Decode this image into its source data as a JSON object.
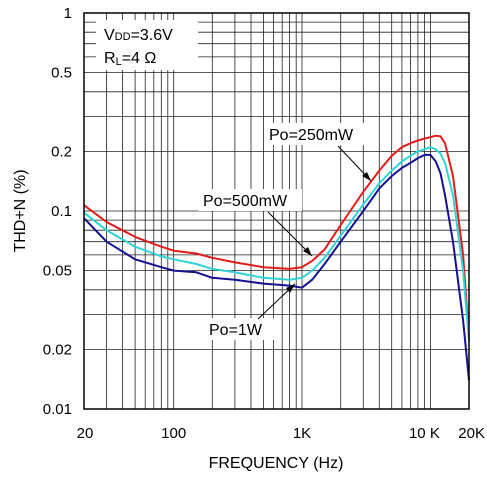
{
  "chart_data": {
    "type": "line",
    "xlabel": "FREQUENCY (Hz)",
    "ylabel": "THD+N (%)",
    "x_scale": "log",
    "y_scale": "log",
    "xlim": [
      20,
      20000
    ],
    "ylim": [
      0.01,
      1
    ],
    "grid": true,
    "x_tick_labels": [
      {
        "value": 20,
        "label": "20"
      },
      {
        "value": 100,
        "label": "100"
      },
      {
        "value": 1000,
        "label": "1K"
      },
      {
        "value": 10000,
        "label": "10 K"
      },
      {
        "value": 20000,
        "label": "20K"
      }
    ],
    "y_tick_labels": [
      {
        "value": 1,
        "label": "1"
      },
      {
        "value": 0.5,
        "label": "0.5"
      },
      {
        "value": 0.2,
        "label": "0.2"
      },
      {
        "value": 0.1,
        "label": "0.1"
      },
      {
        "value": 0.05,
        "label": "0.05"
      },
      {
        "value": 0.02,
        "label": "0.02"
      },
      {
        "value": 0.01,
        "label": "0.01"
      }
    ],
    "conditions": {
      "vdd_prefix": "V",
      "vdd_sub": "DD",
      "vdd_value": "=3.6V",
      "rl_prefix": "R",
      "rl_sub": "L",
      "rl_value": "=4 Ω"
    },
    "series": [
      {
        "name": "Po=250mW",
        "color": "#e31b1b",
        "x": [
          20,
          30,
          50,
          80,
          100,
          150,
          200,
          300,
          500,
          800,
          1000,
          1200,
          1500,
          2000,
          3000,
          4000,
          5000,
          6000,
          7000,
          8000,
          9000,
          10000,
          11000,
          12000,
          13000,
          15000,
          18000,
          20000
        ],
        "y": [
          0.107,
          0.088,
          0.074,
          0.066,
          0.063,
          0.061,
          0.058,
          0.055,
          0.052,
          0.051,
          0.052,
          0.056,
          0.064,
          0.085,
          0.125,
          0.16,
          0.19,
          0.21,
          0.22,
          0.227,
          0.232,
          0.236,
          0.24,
          0.238,
          0.22,
          0.15,
          0.06,
          0.023
        ]
      },
      {
        "name": "Po=500mW",
        "color": "#2fd3d8",
        "x": [
          20,
          30,
          50,
          80,
          100,
          150,
          200,
          300,
          500,
          800,
          1000,
          1200,
          1500,
          2000,
          3000,
          4000,
          5000,
          6000,
          7000,
          8000,
          9000,
          10000,
          11000,
          12000,
          13000,
          15000,
          18000,
          20000
        ],
        "y": [
          0.098,
          0.08,
          0.066,
          0.059,
          0.057,
          0.054,
          0.051,
          0.049,
          0.046,
          0.045,
          0.046,
          0.05,
          0.058,
          0.075,
          0.108,
          0.138,
          0.16,
          0.178,
          0.19,
          0.2,
          0.205,
          0.21,
          0.205,
          0.195,
          0.175,
          0.12,
          0.05,
          0.022
        ]
      },
      {
        "name": "Po=1W",
        "color": "#12128f",
        "x": [
          20,
          30,
          50,
          80,
          100,
          150,
          200,
          300,
          500,
          800,
          1000,
          1200,
          1500,
          2000,
          3000,
          4000,
          5000,
          6000,
          7000,
          8000,
          9000,
          10000,
          11000,
          12000,
          13000,
          15000,
          18000,
          20000
        ],
        "y": [
          0.092,
          0.07,
          0.057,
          0.052,
          0.05,
          0.049,
          0.046,
          0.045,
          0.043,
          0.042,
          0.041,
          0.045,
          0.054,
          0.07,
          0.1,
          0.13,
          0.15,
          0.165,
          0.175,
          0.185,
          0.192,
          0.192,
          0.178,
          0.155,
          0.12,
          0.07,
          0.028,
          0.014
        ]
      }
    ]
  }
}
